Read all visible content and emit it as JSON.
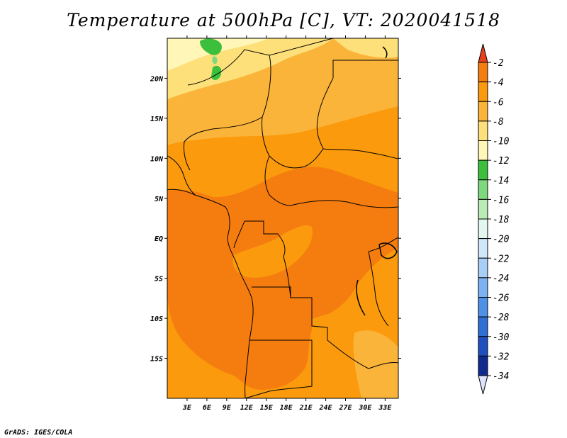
{
  "title": "Temperature at 500hPa [C], VT: 2020041518",
  "footer": "GrADS: IGES/COLA",
  "map": {
    "lon_range": [
      0,
      35
    ],
    "lat_range": [
      -20,
      25
    ],
    "lat_ticks": [
      {
        "lat": 20,
        "label": "20N"
      },
      {
        "lat": 15,
        "label": "15N"
      },
      {
        "lat": 10,
        "label": "10N"
      },
      {
        "lat": 5,
        "label": "5N"
      },
      {
        "lat": 0,
        "label": "EQ"
      },
      {
        "lat": -5,
        "label": "5S"
      },
      {
        "lat": -10,
        "label": "10S"
      },
      {
        "lat": -15,
        "label": "15S"
      }
    ],
    "lon_ticks": [
      {
        "lon": 3,
        "label": "3E"
      },
      {
        "lon": 6,
        "label": "6E"
      },
      {
        "lon": 9,
        "label": "9E"
      },
      {
        "lon": 12,
        "label": "12E"
      },
      {
        "lon": 15,
        "label": "15E"
      },
      {
        "lon": 18,
        "label": "18E"
      },
      {
        "lon": 21,
        "label": "21E"
      },
      {
        "lon": 24,
        "label": "24E"
      },
      {
        "lon": 27,
        "label": "27E"
      },
      {
        "lon": 30,
        "label": "30E"
      },
      {
        "lon": 33,
        "label": "33E"
      }
    ]
  },
  "colorbar": {
    "levels": [
      {
        "label": "-2",
        "color": "#f05a1e"
      },
      {
        "label": "-4",
        "color": "#f57d0f"
      },
      {
        "label": "-6",
        "color": "#fa9a0c"
      },
      {
        "label": "-8",
        "color": "#fbb43a"
      },
      {
        "label": "-10",
        "color": "#fde07a"
      },
      {
        "label": "-12",
        "color": "#fff6b8"
      },
      {
        "label": "-14",
        "color": "#3cbf3c"
      },
      {
        "label": "-16",
        "color": "#7ed87e"
      },
      {
        "label": "-18",
        "color": "#b8ecb4"
      },
      {
        "label": "-20",
        "color": "#e2f7ee"
      },
      {
        "label": "-22",
        "color": "#cfe6fb"
      },
      {
        "label": "-24",
        "color": "#a9cff7"
      },
      {
        "label": "-26",
        "color": "#7cb2f1"
      },
      {
        "label": "-28",
        "color": "#4e91e6"
      },
      {
        "label": "-30",
        "color": "#2e6fd6"
      },
      {
        "label": "-32",
        "color": "#1f4fbf"
      },
      {
        "label": "-34",
        "color": "#112a8f"
      }
    ],
    "top_color": "#e8401a",
    "bottom_color": "#dfe3ff",
    "bottom_extra_color": "#0c1a66"
  }
}
